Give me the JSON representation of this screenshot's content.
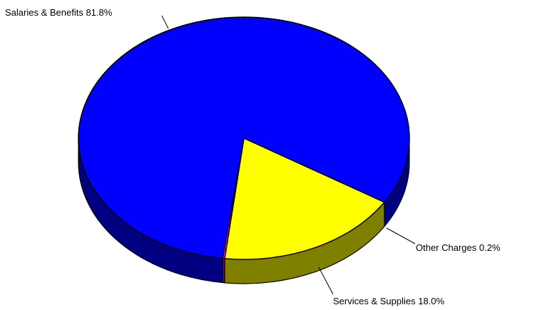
{
  "chart_data": {
    "type": "pie",
    "style": "3d",
    "categories": [
      "Salaries & Benefits",
      "Services & Supplies",
      "Other Charges"
    ],
    "values": [
      81.8,
      18.0,
      0.2
    ],
    "labels": [
      "Salaries & Benefits  81.8%",
      "Services & Supplies  18.0%",
      "Other Charges  0.2%"
    ],
    "colors": {
      "top": [
        "#0000ff",
        "#ffff00",
        "#ff00ff"
      ],
      "side": [
        "#000080",
        "#808000",
        "#800080"
      ]
    },
    "title": "",
    "legend": "none"
  }
}
